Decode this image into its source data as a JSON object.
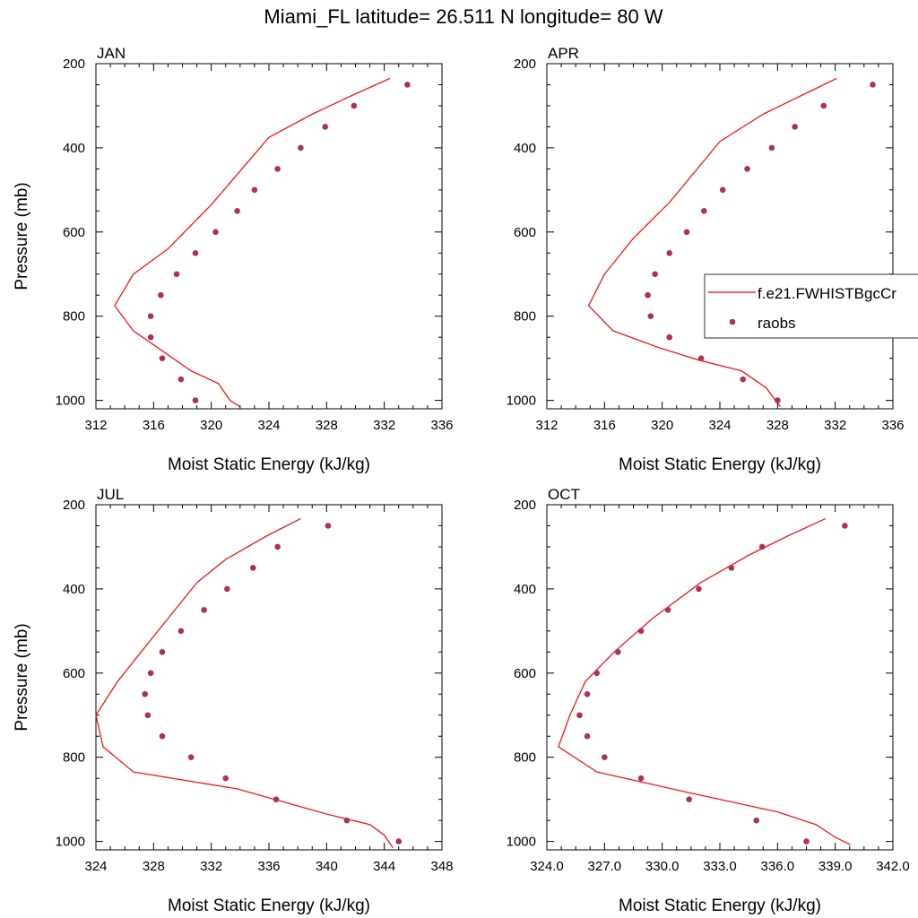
{
  "title": "Miami_FL  latitude= 26.511 N longitude= 80 W",
  "legend": {
    "model_label": "f.e21.FWHISTBgcCr",
    "obs_label": "raobs"
  },
  "colors": {
    "model_line": "#ff0000",
    "obs_marker": "#b03050"
  },
  "chart_data": [
    {
      "type": "line",
      "panel_label": "JAN",
      "xlabel": "Moist Static Energy (kJ/kg)",
      "ylabel": "Pressure (mb)",
      "xlim": [
        312,
        336
      ],
      "ylim": [
        200,
        1020
      ],
      "y_inverted": true,
      "xticks": [
        312,
        316,
        320,
        324,
        328,
        332,
        336
      ],
      "xtick_labels": [
        "312",
        "316",
        "320",
        "324",
        "328",
        "332",
        "336"
      ],
      "yticks": [
        200,
        400,
        600,
        800,
        1000
      ],
      "model": {
        "name": "f.e21.FWHISTBgcCr",
        "x": [
          332.4,
          329.8,
          327.0,
          324.0,
          320.0,
          317.0,
          314.6,
          313.3,
          314.6,
          316.5,
          318.6,
          320.5,
          321.3,
          322.0
        ],
        "y": [
          235,
          275,
          320,
          375,
          535,
          640,
          700,
          775,
          835,
          880,
          930,
          960,
          1000,
          1015
        ]
      },
      "obs": {
        "name": "raobs",
        "x": [
          333.6,
          329.9,
          327.9,
          326.2,
          324.6,
          323.0,
          321.8,
          320.3,
          318.9,
          317.6,
          316.5,
          315.8,
          315.8,
          316.6,
          317.9,
          318.9
        ],
        "y": [
          250,
          300,
          350,
          400,
          450,
          500,
          550,
          600,
          650,
          700,
          750,
          800,
          850,
          900,
          950,
          1000
        ]
      }
    },
    {
      "type": "line",
      "panel_label": "APR",
      "xlabel": "Moist Static Energy (kJ/kg)",
      "ylabel": "",
      "xlim": [
        312,
        336
      ],
      "ylim": [
        200,
        1020
      ],
      "y_inverted": true,
      "xticks": [
        312,
        316,
        320,
        324,
        328,
        332,
        336
      ],
      "xtick_labels": [
        "312",
        "316",
        "320",
        "324",
        "328",
        "332",
        "336"
      ],
      "yticks": [
        200,
        400,
        600,
        800,
        1000
      ],
      "legend_position": "right",
      "model": {
        "name": "f.e21.FWHISTBgcCr",
        "x": [
          332.1,
          329.7,
          327.0,
          324.0,
          320.5,
          318.0,
          316.0,
          314.9,
          316.6,
          319.8,
          322.6,
          325.5,
          327.2,
          328.2
        ],
        "y": [
          235,
          275,
          320,
          385,
          530,
          615,
          700,
          775,
          835,
          875,
          905,
          930,
          970,
          1015
        ]
      },
      "obs": {
        "name": "raobs",
        "x": [
          334.6,
          331.2,
          329.2,
          327.6,
          325.9,
          324.2,
          322.9,
          321.7,
          320.5,
          319.5,
          319.0,
          319.2,
          320.5,
          322.7,
          325.6,
          328.0
        ],
        "y": [
          250,
          300,
          350,
          400,
          450,
          500,
          550,
          600,
          650,
          700,
          750,
          800,
          850,
          900,
          950,
          1000
        ]
      }
    },
    {
      "type": "line",
      "panel_label": "JUL",
      "xlabel": "Moist Static Energy (kJ/kg)",
      "ylabel": "Pressure (mb)",
      "xlim": [
        324,
        348
      ],
      "ylim": [
        200,
        1020
      ],
      "y_inverted": true,
      "xticks": [
        324,
        328,
        332,
        336,
        340,
        344,
        348
      ],
      "xtick_labels": [
        "324",
        "328",
        "332",
        "336",
        "340",
        "344",
        "348"
      ],
      "yticks": [
        200,
        400,
        600,
        800,
        1000
      ],
      "model": {
        "name": "f.e21.FWHISTBgcCr",
        "x": [
          338.2,
          335.8,
          333.0,
          331.0,
          327.6,
          325.5,
          324.0,
          324.5,
          326.6,
          333.8,
          340.0,
          343.0,
          344.0,
          344.6
        ],
        "y": [
          233,
          275,
          330,
          385,
          530,
          620,
          700,
          775,
          835,
          875,
          935,
          960,
          985,
          1015
        ]
      },
      "obs": {
        "name": "raobs",
        "x": [
          340.1,
          336.6,
          334.9,
          333.1,
          331.5,
          329.9,
          328.6,
          327.8,
          327.4,
          327.6,
          328.6,
          330.6,
          333.0,
          336.5,
          341.4,
          345.0
        ],
        "y": [
          250,
          300,
          350,
          400,
          450,
          500,
          550,
          600,
          650,
          700,
          750,
          800,
          850,
          900,
          950,
          1000
        ]
      }
    },
    {
      "type": "line",
      "panel_label": "OCT",
      "xlabel": "Moist Static Energy (kJ/kg)",
      "ylabel": "",
      "xlim": [
        324,
        342
      ],
      "ylim": [
        200,
        1020
      ],
      "y_inverted": true,
      "xticks": [
        324,
        327,
        330,
        333,
        336,
        339,
        342
      ],
      "xtick_labels": [
        "324.0",
        "327.0",
        "330.0",
        "333.0",
        "336.0",
        "339.0",
        "342.0"
      ],
      "yticks": [
        200,
        400,
        600,
        800,
        1000
      ],
      "model": {
        "name": "f.e21.FWHISTBgcCr",
        "x": [
          338.5,
          336.5,
          334.5,
          332.0,
          329.5,
          327.5,
          326.0,
          325.2,
          324.6,
          326.6,
          331.0,
          336.0,
          338.0,
          339.0,
          339.8
        ],
        "y": [
          233,
          275,
          320,
          385,
          470,
          550,
          620,
          700,
          775,
          835,
          880,
          930,
          960,
          990,
          1008
        ]
      },
      "obs": {
        "name": "raobs",
        "x": [
          339.5,
          335.2,
          333.6,
          331.9,
          330.3,
          328.9,
          327.7,
          326.6,
          326.1,
          325.7,
          326.1,
          327.0,
          328.9,
          331.4,
          334.9,
          337.5
        ],
        "y": [
          250,
          300,
          350,
          400,
          450,
          500,
          550,
          600,
          650,
          700,
          750,
          800,
          850,
          900,
          950,
          1000
        ]
      }
    }
  ]
}
